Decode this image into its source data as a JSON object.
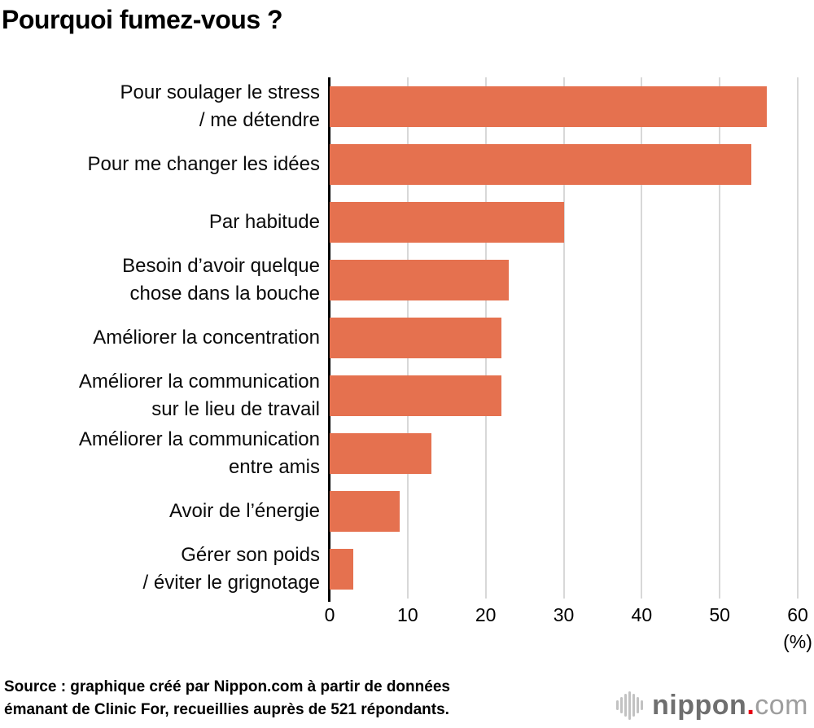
{
  "title": "Pourquoi fumez-vous ?",
  "chart_data": {
    "type": "bar",
    "orientation": "horizontal",
    "title": "Pourquoi fumez-vous ?",
    "categories": [
      "Pour soulager le stress\n/ me détendre",
      "Pour me changer les idées",
      "Par habitude",
      "Besoin d’avoir quelque\nchose dans la bouche",
      "Améliorer la concentration",
      "Améliorer la communication\nsur le lieu de travail",
      "Améliorer la communication\nentre amis",
      "Avoir de l’énergie",
      "Gérer son poids\n/ éviter le grignotage"
    ],
    "values": [
      56,
      54,
      30,
      23,
      22,
      22,
      13,
      9,
      3
    ],
    "xlabel": "(%)",
    "ylabel": "",
    "xlim": [
      0,
      60
    ],
    "xticks": [
      0,
      10,
      20,
      30,
      40,
      50,
      60
    ],
    "grid": true,
    "legend": false,
    "bar_color": "#e5714f",
    "gridline_color": "#d8d8d8",
    "axis_color": "#000000"
  },
  "source": {
    "text": "Source : graphique créé par Nippon.com à partir de données\némanant de Clinic For, recueillies auprès de 521 répondants."
  },
  "logo": {
    "wordmark": "nippon",
    "separator": ".",
    "tld": "com",
    "icon": "soundwave-icon",
    "dot_color": "#e60012"
  }
}
